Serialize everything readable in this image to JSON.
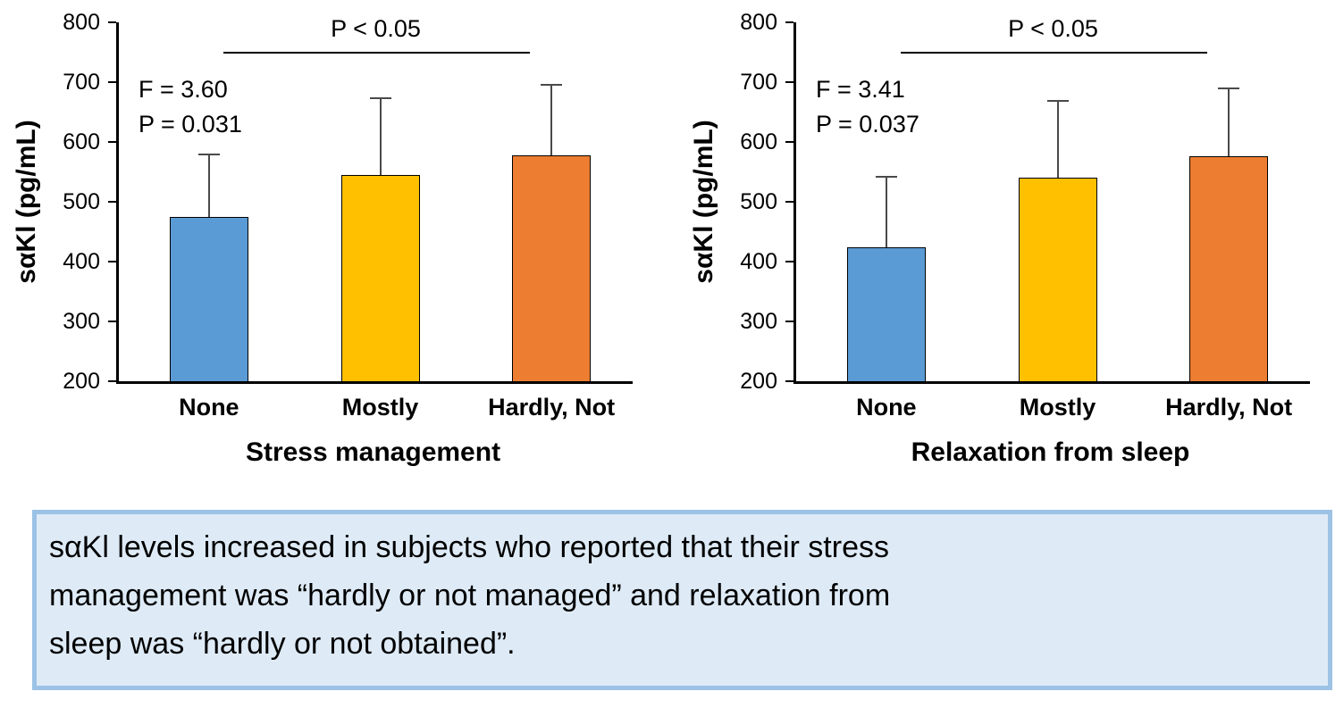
{
  "chart_data": [
    {
      "type": "bar",
      "title": "",
      "xlabel": "Stress management",
      "ylabel": "sαKl (pg/mL)",
      "categories": [
        "None",
        "Mostly",
        "Hardly, Not"
      ],
      "values": [
        475,
        545,
        577
      ],
      "error_tops": [
        580,
        675,
        697
      ],
      "bar_colors": [
        "#5B9BD5",
        "#FFC000",
        "#ED7D31"
      ],
      "ylim": [
        200,
        800
      ],
      "yticks": [
        200,
        300,
        400,
        500,
        600,
        700,
        800
      ],
      "grid": false,
      "legend": "none",
      "sig_label": "P < 0.05",
      "stats": {
        "f_label": "F = 3.60",
        "p_label": "P = 0.031"
      }
    },
    {
      "type": "bar",
      "title": "",
      "xlabel": "Relaxation from sleep",
      "ylabel": "sαKl (pg/mL)",
      "categories": [
        "None",
        "Mostly",
        "Hardly, Not"
      ],
      "values": [
        424,
        540,
        576
      ],
      "error_tops": [
        543,
        670,
        691
      ],
      "bar_colors": [
        "#5B9BD5",
        "#FFC000",
        "#ED7D31"
      ],
      "ylim": [
        200,
        800
      ],
      "yticks": [
        200,
        300,
        400,
        500,
        600,
        700,
        800
      ],
      "grid": false,
      "legend": "none",
      "sig_label": "P < 0.05",
      "stats": {
        "f_label": "F = 3.41",
        "p_label": "P = 0.037"
      }
    }
  ],
  "caption": {
    "text": "sαKl levels increased in subjects who reported that their stress\nmanagement was “hardly or not managed” and relaxation from\nsleep was “hardly or not obtained”.",
    "background": "#DEEBF7",
    "border_color": "#9CC2E5"
  },
  "colors": {
    "axis": "#000000",
    "error_bar": "#4a4a4a",
    "bar_blue": "#5B9BD5",
    "bar_gold": "#FFC000",
    "bar_orange": "#ED7D31"
  }
}
